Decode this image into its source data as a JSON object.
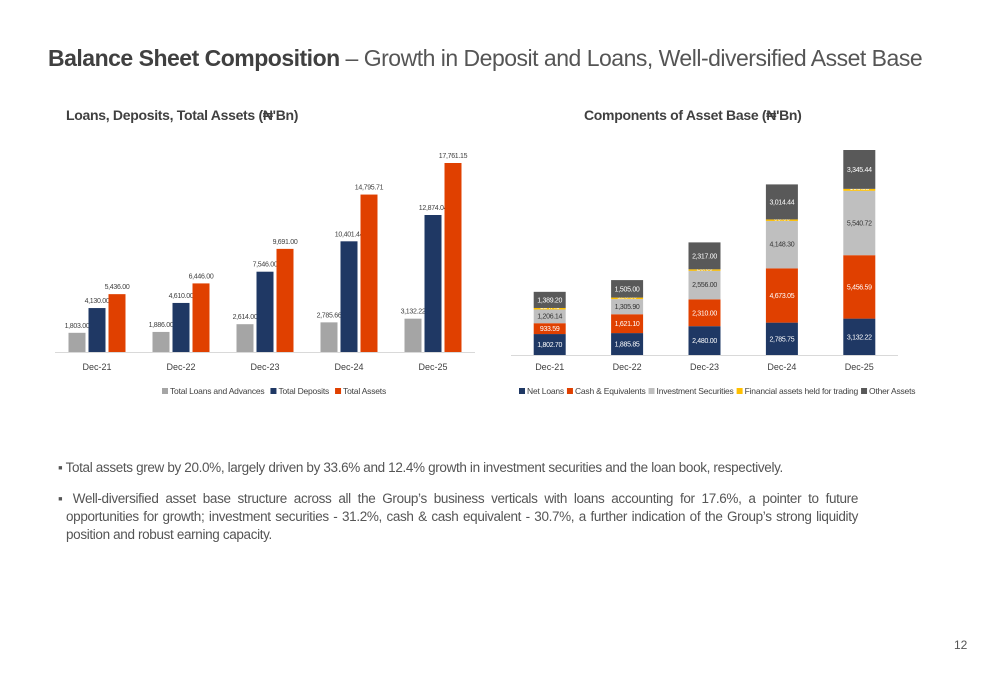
{
  "page": {
    "title_bold": "Balance Sheet Composition",
    "title_rest": " – Growth in Deposit and Loans, Well-diversified Asset Base",
    "page_number": "12",
    "bullets": [
      "▪ Total assets grew by 20.0%, largely driven by 33.6% and 12.4% growth in investment securities and the loan book, respectively.",
      "▪ Well-diversified asset base structure across all the Group’s business verticals with loans accounting for 17.6%, a pointer to future opportunities for growth; investment securities - 31.2%, cash & cash equivalent - 30.7%, a further indication of the Group’s strong liquidity position and robust earning capacity."
    ]
  },
  "chart_data": [
    {
      "type": "bar",
      "title": "Loans, Deposits, Total Assets (₦'Bn)",
      "xlabel": "",
      "ylabel": "",
      "grid": false,
      "legend_position": "bottom",
      "categories": [
        "Dec-21",
        "Dec-22",
        "Dec-23",
        "Dec-24",
        "Dec-25"
      ],
      "ylim": [
        0,
        18000
      ],
      "series": [
        {
          "name": "Total Loans and Advances",
          "color": "#A5A5A5",
          "values": [
            1803.0,
            1886.0,
            2614.0,
            2785.66,
            3132.22
          ],
          "labels": [
            "1,803.00",
            "1,886.00",
            "2,614.00",
            "2,785.66",
            "3,132.22"
          ]
        },
        {
          "name": "Total Deposits",
          "color": "#1F3864",
          "values": [
            4130.0,
            4610.0,
            7546.0,
            10401.44,
            12874.04
          ],
          "labels": [
            "4,130.00",
            "4,610.00",
            "7,546.00",
            "10,401.44",
            "12,874.04"
          ]
        },
        {
          "name": "Total Assets",
          "color": "#E04000",
          "values": [
            5436.0,
            6446.0,
            9691.0,
            14795.71,
            17761.15
          ],
          "labels": [
            "5,436.00",
            "6,446.00",
            "9,691.00",
            "14,795.71",
            "17,761.15"
          ]
        }
      ]
    },
    {
      "type": "bar",
      "stacked": true,
      "title": "Components of Asset Base (₦'Bn)",
      "xlabel": "",
      "ylabel": "",
      "grid": false,
      "legend_position": "bottom",
      "categories": [
        "Dec-21",
        "Dec-22",
        "Dec-23",
        "Dec-24",
        "Dec-25"
      ],
      "ylim": [
        0,
        18000
      ],
      "series": [
        {
          "name": "Net Loans",
          "color": "#1F3864",
          "label_color": "#FFFFFF",
          "values": [
            1802.7,
            1885.85,
            2480.0,
            2785.75,
            3132.22
          ],
          "labels": [
            "1,802.70",
            "1,885.85",
            "2,480.00",
            "2,785.75",
            "3,132.22"
          ]
        },
        {
          "name": "Cash & Equivalents",
          "color": "#E04000",
          "label_color": "#FFFFFF",
          "values": [
            933.59,
            1621.1,
            2310.0,
            4673.05,
            5456.59
          ],
          "labels": [
            "933.59",
            "1,621.10",
            "2,310.00",
            "4,673.05",
            "5,456.59"
          ]
        },
        {
          "name": "Investment Securities",
          "color": "#BFBFBF",
          "label_color": "#333333",
          "values": [
            1206.14,
            1305.9,
            2556.0,
            4148.3,
            5540.72
          ],
          "labels": [
            "1,206.14",
            "1,305.90",
            "2,556.00",
            "4,148.30",
            "5,540.72"
          ]
        },
        {
          "name": "Financial assets held for trading",
          "color": "#FFC000",
          "label_color": "#FFFFFF",
          "values": [
            104.4,
            128.8,
            28.0,
            59.6,
            166.88
          ],
          "labels": [
            "104.40",
            "128.80",
            "28.00",
            "59.60",
            "166.88"
          ]
        },
        {
          "name": "Other Assets",
          "color": "#595959",
          "label_color": "#FFFFFF",
          "values": [
            1389.2,
            1505.0,
            2317.0,
            3014.44,
            3345.44
          ],
          "labels": [
            "1,389.20",
            "1,505.00",
            "2,317.00",
            "3,014.44",
            "3,345.44"
          ]
        }
      ]
    }
  ]
}
